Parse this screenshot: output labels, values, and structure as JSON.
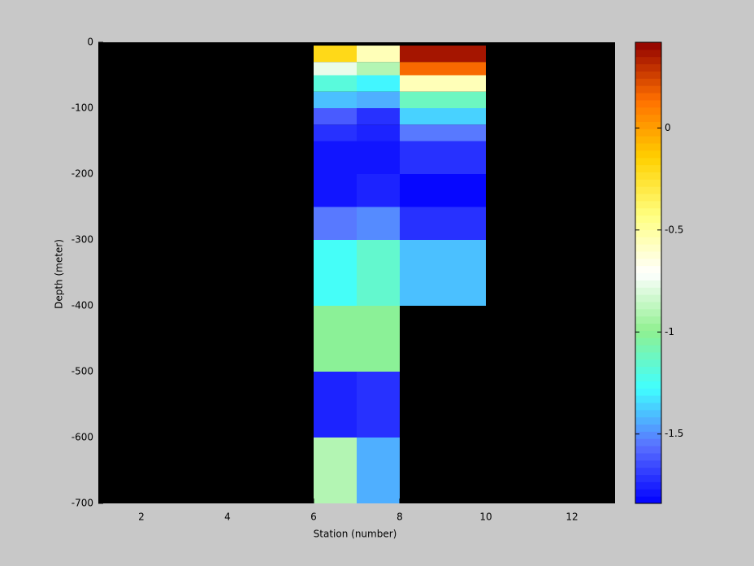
{
  "chart_data": {
    "type": "heatmap",
    "xlabel": "Station (number)",
    "ylabel": "Depth (meter)",
    "xlim": [
      1,
      13
    ],
    "xticks": [
      2,
      4,
      6,
      8,
      10,
      12
    ],
    "ylim": [
      -700,
      0
    ],
    "yticks": [
      0,
      -100,
      -200,
      -300,
      -400,
      -500,
      -600,
      -700
    ],
    "x_edges": [
      6,
      7,
      8,
      10
    ],
    "y_edges": [
      -5,
      -30,
      -50,
      -75,
      -100,
      -125,
      -150,
      -200,
      -250,
      -300,
      -400,
      -500,
      -600,
      -700
    ],
    "z": [
      [
        -0.2,
        -0.55,
        0.38
      ],
      [
        -0.75,
        -0.9,
        0.15
      ],
      [
        -1.2,
        -1.3,
        -0.55
      ],
      [
        -1.4,
        -1.45,
        -1.1
      ],
      [
        -1.6,
        -1.7,
        -1.35
      ],
      [
        -1.72,
        -1.75,
        -1.55
      ],
      [
        -1.8,
        -1.78,
        -1.7
      ],
      [
        -1.78,
        -1.75,
        -1.84
      ],
      [
        -1.55,
        -1.5,
        -1.72
      ],
      [
        -1.25,
        -1.15,
        -1.4
      ],
      [
        -1.0,
        -1.0,
        null
      ],
      [
        -1.75,
        -1.72,
        null
      ],
      [
        -0.9,
        -1.45,
        null
      ]
    ],
    "background": "#000000",
    "colormap": [
      "#0000ff",
      "#5a70ff",
      "#40ffff",
      "#90f090",
      "#ffffff",
      "#ffff80",
      "#ffd000",
      "#ff7000",
      "#900000"
    ],
    "levels": 64,
    "clim": [
      -1.84,
      0.42
    ],
    "cticks": [
      0,
      -0.5,
      -1,
      -1.5
    ]
  }
}
